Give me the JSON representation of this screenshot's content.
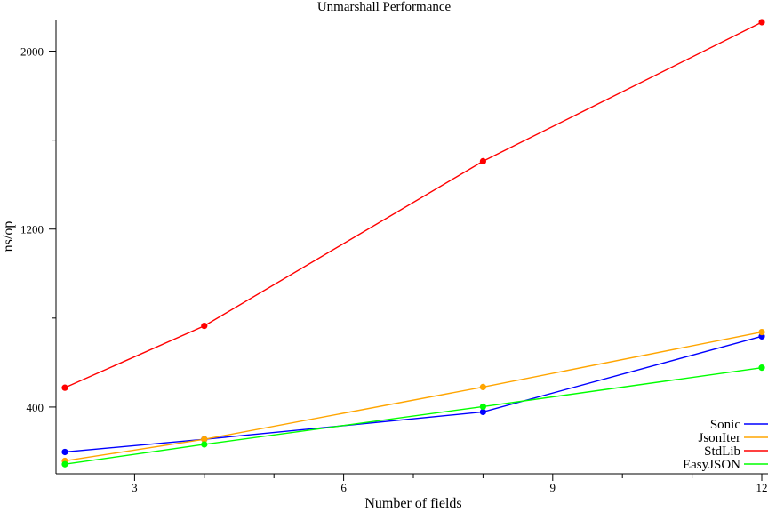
{
  "chart_data": {
    "type": "line",
    "title": "Unmarshall Performance",
    "xlabel": "Number of fields",
    "ylabel": "ns/op",
    "xlim": [
      2,
      12
    ],
    "ylim": [
      100,
      2150
    ],
    "xticks": [
      3,
      6,
      9,
      12
    ],
    "xticks_minor": [
      4,
      5,
      7,
      8,
      10,
      11
    ],
    "yticks": [
      400,
      1200,
      2000
    ],
    "yticks_minor": [
      800,
      1600
    ],
    "grid": false,
    "legend_position": "bottom-right",
    "x": [
      2,
      4,
      8,
      12
    ],
    "series": [
      {
        "name": "Sonic",
        "color": "#0000ff",
        "values": [
          198,
          255,
          378,
          718
        ]
      },
      {
        "name": "JsonIter",
        "color": "#ffa500",
        "values": [
          158,
          255,
          490,
          737
        ]
      },
      {
        "name": "StdLib",
        "color": "#ff0000",
        "values": [
          487,
          765,
          1505,
          2130
        ]
      },
      {
        "name": "EasyJSON",
        "color": "#00ff00",
        "values": [
          143,
          232,
          402,
          577
        ]
      }
    ]
  }
}
